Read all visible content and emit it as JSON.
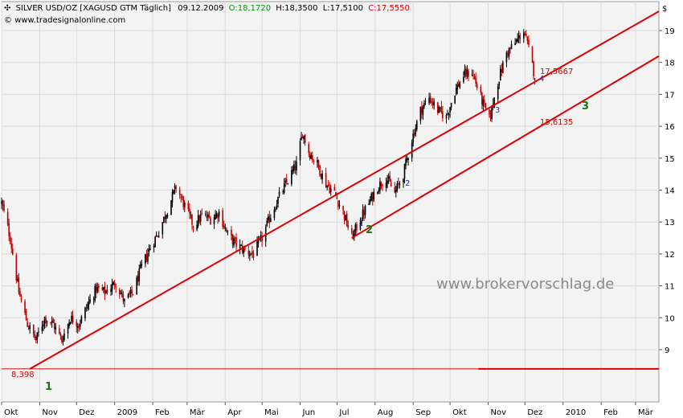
{
  "header": {
    "marker": "✣",
    "symbol": "SILVER USD/OZ [XAGUSD GTM  Täglich]",
    "date": "09.12.2009",
    "open": "O:18,1720",
    "high": "H:18,3500",
    "low": "L:17,5100",
    "close": "C:17,5550",
    "copyright": "© www.tradesignalonline.com",
    "currency": "$"
  },
  "watermark": "www.brokervorschlag.de",
  "colors": {
    "background": "#ffffff",
    "plot_background": "#f3f3f3",
    "grid": "#dcdcdc",
    "trendline": "#dd0000",
    "candle_up": "#000000",
    "candle_down": "#c00000",
    "open_text": "#009900",
    "close_text": "#dd0000",
    "label_red": "#dd0000",
    "label_blue": "#3333aa",
    "label_green": "#117711"
  },
  "annotations": {
    "price_low": "8,398",
    "price_a": "17,5667",
    "price_b": "15,6135",
    "pivot_1": "1",
    "pivot_2": "2",
    "pivot_3": "3",
    "pivot_4": "4",
    "wave_1": "1",
    "wave_2": "2",
    "wave_3": "3"
  },
  "chart_data": {
    "type": "candlestick",
    "title": "SILVER USD/OZ [XAGUSD GTM  Täglich]",
    "xlabel": "",
    "ylabel": "$",
    "ylim": [
      8.0,
      19.7
    ],
    "y_ticks": [
      9,
      10,
      11,
      12,
      13,
      14,
      15,
      16,
      17,
      18,
      19
    ],
    "x_ticks": [
      "Okt",
      "Nov",
      "Dez",
      "2009",
      "Feb",
      "Mär",
      "Apr",
      "Mai",
      "Jun",
      "Jul",
      "Aug",
      "Sep",
      "Okt",
      "Nov",
      "Dez",
      "2010",
      "Feb",
      "Mär"
    ],
    "x_tick_months": [
      "2008-10",
      "2008-11",
      "2008-12",
      "2009-01",
      "2009-02",
      "2009-03",
      "2009-04",
      "2009-05",
      "2009-06",
      "2009-07",
      "2009-08",
      "2009-09",
      "2009-10",
      "2009-11",
      "2009-12",
      "2010-01",
      "2010-02",
      "2010-03"
    ],
    "grid": true,
    "price_axis_position": "right",
    "close_path": [
      [
        "2008-10-01",
        13.6
      ],
      [
        "2008-10-08",
        12.5
      ],
      [
        "2008-10-15",
        10.8
      ],
      [
        "2008-10-22",
        9.8
      ],
      [
        "2008-10-29",
        9.3
      ],
      [
        "2008-11-05",
        10.0
      ],
      [
        "2008-11-12",
        9.8
      ],
      [
        "2008-11-19",
        9.3
      ],
      [
        "2008-11-26",
        10.0
      ],
      [
        "2008-12-03",
        9.8
      ],
      [
        "2008-12-10",
        10.4
      ],
      [
        "2008-12-17",
        10.9
      ],
      [
        "2008-12-24",
        10.8
      ],
      [
        "2009-01-02",
        11.1
      ],
      [
        "2009-01-09",
        10.5
      ],
      [
        "2009-01-16",
        10.8
      ],
      [
        "2009-01-23",
        11.6
      ],
      [
        "2009-01-30",
        12.2
      ],
      [
        "2009-02-06",
        12.7
      ],
      [
        "2009-02-13",
        13.4
      ],
      [
        "2009-02-20",
        14.1
      ],
      [
        "2009-02-27",
        13.5
      ],
      [
        "2009-03-06",
        12.9
      ],
      [
        "2009-03-13",
        13.2
      ],
      [
        "2009-03-20",
        13.1
      ],
      [
        "2009-03-27",
        13.3
      ],
      [
        "2009-04-03",
        12.6
      ],
      [
        "2009-04-10",
        12.3
      ],
      [
        "2009-04-17",
        12.1
      ],
      [
        "2009-04-24",
        12.0
      ],
      [
        "2009-05-01",
        12.5
      ],
      [
        "2009-05-08",
        13.2
      ],
      [
        "2009-05-15",
        13.8
      ],
      [
        "2009-05-22",
        14.3
      ],
      [
        "2009-05-29",
        14.8
      ],
      [
        "2009-06-03",
        15.8
      ],
      [
        "2009-06-08",
        15.2
      ],
      [
        "2009-06-15",
        14.8
      ],
      [
        "2009-06-22",
        14.2
      ],
      [
        "2009-06-29",
        13.9
      ],
      [
        "2009-07-06",
        13.3
      ],
      [
        "2009-07-13",
        12.5
      ],
      [
        "2009-07-20",
        13.1
      ],
      [
        "2009-07-27",
        13.6
      ],
      [
        "2009-08-03",
        14.1
      ],
      [
        "2009-08-10",
        14.4
      ],
      [
        "2009-08-17",
        13.9
      ],
      [
        "2009-08-24",
        14.5
      ],
      [
        "2009-08-31",
        15.6
      ],
      [
        "2009-09-07",
        16.5
      ],
      [
        "2009-09-14",
        16.9
      ],
      [
        "2009-09-21",
        16.5
      ],
      [
        "2009-09-28",
        16.3
      ],
      [
        "2009-10-05",
        17.1
      ],
      [
        "2009-10-12",
        17.6
      ],
      [
        "2009-10-19",
        17.7
      ],
      [
        "2009-10-26",
        16.9
      ],
      [
        "2009-11-02",
        16.2
      ],
      [
        "2009-11-09",
        17.4
      ],
      [
        "2009-11-16",
        18.3
      ],
      [
        "2009-11-23",
        18.6
      ],
      [
        "2009-11-30",
        19.0
      ],
      [
        "2009-12-04",
        18.4
      ],
      [
        "2009-12-09",
        17.56
      ]
    ],
    "trendlines": [
      {
        "from": [
          "2008-10-24",
          8.398
        ],
        "to": [
          "2010-03-20",
          19.6
        ]
      },
      {
        "from": [
          "2009-07-13",
          12.5
        ],
        "to": [
          "2010-03-20",
          18.2
        ]
      },
      {
        "from": [
          "2009-10-24",
          8.398
        ],
        "to": [
          "2010-03-20",
          8.398
        ],
        "style": "horizontal"
      }
    ]
  }
}
